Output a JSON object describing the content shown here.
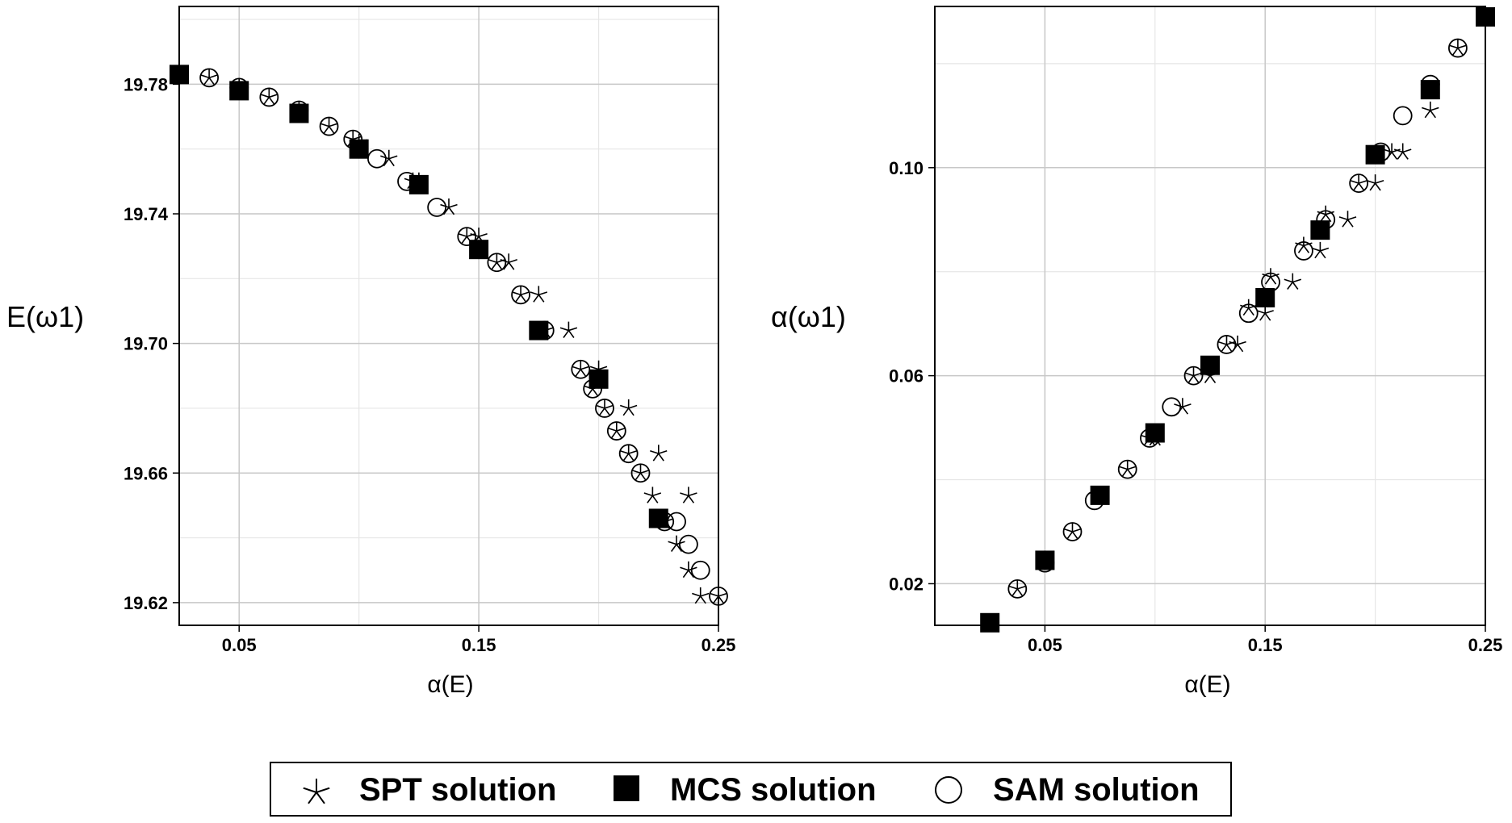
{
  "chart_data": [
    {
      "type": "scatter",
      "xlabel": "α(E)",
      "ylabel": "E(ω1)",
      "xlim": [
        0.025,
        0.25
      ],
      "ylim": [
        19.613,
        19.804
      ],
      "xticks": [
        "0.05",
        "0.15",
        "0.25"
      ],
      "yticks": [
        "19.78",
        "19.74",
        "19.70",
        "19.66",
        "19.62"
      ],
      "grid": true,
      "series": [
        {
          "name": "SPT solution",
          "marker": "star",
          "x": [
            0.025,
            0.0375,
            0.05,
            0.0625,
            0.075,
            0.0875,
            0.1,
            0.1125,
            0.125,
            0.1375,
            0.15,
            0.1625,
            0.175,
            0.1875,
            0.2,
            0.2125,
            0.225,
            0.2375,
            0.25,
            0.0975,
            0.1225,
            0.145,
            0.1575,
            0.1675,
            0.1775,
            0.1925,
            0.1975,
            0.2025,
            0.2075,
            0.2125,
            0.2175,
            0.2225,
            0.2275,
            0.2325,
            0.2375,
            0.2425
          ],
          "y": [
            19.783,
            19.782,
            19.779,
            19.776,
            19.772,
            19.767,
            19.762,
            19.757,
            19.75,
            19.742,
            19.733,
            19.725,
            19.715,
            19.704,
            19.692,
            19.68,
            19.666,
            19.653,
            19.622,
            19.763,
            19.75,
            19.733,
            19.725,
            19.715,
            19.704,
            19.692,
            19.686,
            19.68,
            19.673,
            19.666,
            19.66,
            19.653,
            19.645,
            19.638,
            19.63,
            19.622
          ]
        },
        {
          "name": "MCS solution",
          "marker": "filled-square",
          "x": [
            0.025,
            0.05,
            0.075,
            0.1,
            0.125,
            0.15,
            0.175,
            0.2,
            0.225
          ],
          "y": [
            19.783,
            19.778,
            19.771,
            19.76,
            19.749,
            19.729,
            19.704,
            19.689,
            19.646
          ]
        },
        {
          "name": "SAM solution",
          "marker": "open-circle",
          "x": [
            0.025,
            0.0375,
            0.05,
            0.0625,
            0.075,
            0.0875,
            0.0975,
            0.1075,
            0.12,
            0.1325,
            0.145,
            0.1575,
            0.1675,
            0.1775,
            0.1925,
            0.1975,
            0.2025,
            0.2075,
            0.2125,
            0.2175,
            0.2275,
            0.2325,
            0.2375,
            0.2425,
            0.25
          ],
          "y": [
            19.783,
            19.782,
            19.779,
            19.776,
            19.772,
            19.767,
            19.763,
            19.757,
            19.75,
            19.742,
            19.733,
            19.725,
            19.715,
            19.704,
            19.692,
            19.686,
            19.68,
            19.673,
            19.666,
            19.66,
            19.645,
            19.645,
            19.638,
            19.63,
            19.622
          ]
        }
      ]
    },
    {
      "type": "scatter",
      "xlabel": "α(E)",
      "ylabel": "α(ω1)",
      "xlim": [
        0.0,
        0.25
      ],
      "ylim": [
        0.012,
        0.131
      ],
      "xticks": [
        "0.05",
        "0.15",
        "0.25"
      ],
      "yticks": [
        "0.10",
        "0.06",
        "0.02"
      ],
      "grid": true,
      "series": [
        {
          "name": "SPT solution",
          "marker": "star",
          "x": [
            0.0375,
            0.05,
            0.0625,
            0.075,
            0.0875,
            0.1,
            0.1125,
            0.125,
            0.1375,
            0.15,
            0.1625,
            0.175,
            0.1875,
            0.2,
            0.2125,
            0.225,
            0.2375,
            0.0975,
            0.1175,
            0.1325,
            0.1425,
            0.1525,
            0.1675,
            0.1775,
            0.1925,
            0.2075
          ],
          "y": [
            0.019,
            0.024,
            0.03,
            0.037,
            0.042,
            0.048,
            0.054,
            0.06,
            0.066,
            0.072,
            0.078,
            0.084,
            0.09,
            0.097,
            0.103,
            0.111,
            0.123,
            0.048,
            0.06,
            0.066,
            0.073,
            0.079,
            0.085,
            0.091,
            0.097,
            0.103
          ]
        },
        {
          "name": "MCS solution",
          "marker": "filled-square",
          "x": [
            0.025,
            0.05,
            0.075,
            0.1,
            0.125,
            0.15,
            0.175,
            0.2,
            0.225,
            0.25
          ],
          "y": [
            0.0125,
            0.0245,
            0.037,
            0.049,
            0.062,
            0.075,
            0.088,
            0.1025,
            0.115,
            0.129
          ]
        },
        {
          "name": "SAM solution",
          "marker": "open-circle",
          "x": [
            0.0375,
            0.05,
            0.0625,
            0.0725,
            0.0875,
            0.0975,
            0.1075,
            0.1175,
            0.1325,
            0.1425,
            0.1525,
            0.1675,
            0.1775,
            0.1925,
            0.2025,
            0.2125,
            0.225,
            0.2375
          ],
          "y": [
            0.019,
            0.024,
            0.03,
            0.036,
            0.042,
            0.048,
            0.054,
            0.06,
            0.066,
            0.072,
            0.078,
            0.084,
            0.09,
            0.097,
            0.103,
            0.11,
            0.116,
            0.123
          ]
        }
      ]
    }
  ],
  "legend": {
    "placement": "bottom-center",
    "items": [
      {
        "label": "SPT solution",
        "marker": "star"
      },
      {
        "label": "MCS solution",
        "marker": "filled-square"
      },
      {
        "label": "SAM solution",
        "marker": "open-circle"
      }
    ]
  }
}
